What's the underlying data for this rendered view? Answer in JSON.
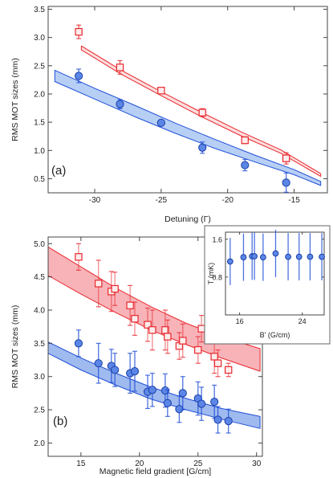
{
  "chart_data": [
    {
      "panel_label": "(a)",
      "type": "scatter",
      "xlabel": "Detuning (Γ)",
      "ylabel": "RMS MOT sizes (mm)",
      "xlim": [
        -33.5,
        -12.5
      ],
      "ylim": [
        0.25,
        3.55
      ],
      "xticks": [
        -30,
        -25,
        -20,
        -15
      ],
      "yticks": [
        0.5,
        1.0,
        1.5,
        2.0,
        2.5,
        3.0,
        3.5
      ],
      "grid": false,
      "series": [
        {
          "color": "#e8282e",
          "fill": "#fbd2d2",
          "marker": "square",
          "points": [
            {
              "x": -31.2,
              "y": 3.1,
              "err": 0.12
            },
            {
              "x": -28.1,
              "y": 2.47,
              "err": 0.12
            },
            {
              "x": -25.0,
              "y": 2.06,
              "err": 0.0
            },
            {
              "x": -21.9,
              "y": 1.67,
              "err": 0.07
            },
            {
              "x": -18.7,
              "y": 1.18,
              "err": 0.06
            },
            {
              "x": -15.6,
              "y": 0.86,
              "err": 0.1
            }
          ],
          "band": {
            "x": [
              -31,
              -28,
              -25,
              -22,
              -19,
              -16,
              -13
            ],
            "lower": [
              2.78,
              2.35,
              1.97,
              1.6,
              1.26,
              0.95,
              0.54
            ],
            "upper": [
              2.85,
              2.42,
              2.04,
              1.68,
              1.33,
              1.01,
              0.59
            ]
          }
        },
        {
          "color": "#1f4fd8",
          "fill": "#9fbff2",
          "marker": "circle",
          "points": [
            {
              "x": -31.2,
              "y": 2.32,
              "err": 0.12
            },
            {
              "x": -28.1,
              "y": 1.82,
              "err": 0.08
            },
            {
              "x": -25.0,
              "y": 1.49,
              "err": 0.0
            },
            {
              "x": -21.9,
              "y": 1.05,
              "err": 0.1
            },
            {
              "x": -18.7,
              "y": 0.74,
              "err": 0.1
            },
            {
              "x": -15.6,
              "y": 0.43,
              "err": 0.17
            }
          ],
          "band": {
            "x": [
              -33,
              -30,
              -27,
              -24,
              -21,
              -18,
              -15,
              -13
            ],
            "lower": [
              2.22,
              1.91,
              1.6,
              1.31,
              1.04,
              0.8,
              0.57,
              0.38
            ],
            "upper": [
              2.42,
              2.1,
              1.8,
              1.49,
              1.2,
              0.92,
              0.66,
              0.45
            ]
          }
        }
      ]
    },
    {
      "panel_label": "(b)",
      "type": "scatter",
      "xlabel": "Magnetic field gradient [G/cm]",
      "ylabel": "RMS MOT sizes (mm)",
      "xlim": [
        12.2,
        30.5
      ],
      "ylim": [
        1.8,
        5.1
      ],
      "xticks": [
        15,
        20,
        25,
        30
      ],
      "yticks": [
        2.0,
        2.5,
        3.0,
        3.5,
        4.0,
        4.5,
        5.0
      ],
      "grid": false,
      "series": [
        {
          "color": "#e8282e",
          "fill": "#f49aa0",
          "marker": "square",
          "points": [
            {
              "x": 14.8,
              "y": 4.8,
              "err": 0.2
            },
            {
              "x": 16.5,
              "y": 4.4,
              "err": 0.35
            },
            {
              "x": 17.6,
              "y": 4.28,
              "err": 0.3
            },
            {
              "x": 17.9,
              "y": 4.32,
              "err": 0.25
            },
            {
              "x": 19.2,
              "y": 4.07,
              "err": 0.3
            },
            {
              "x": 19.6,
              "y": 3.87,
              "err": 0.25
            },
            {
              "x": 20.7,
              "y": 3.78,
              "err": 0.25
            },
            {
              "x": 21.1,
              "y": 3.7,
              "err": 0.3
            },
            {
              "x": 22.2,
              "y": 3.7,
              "err": 0.3
            },
            {
              "x": 22.4,
              "y": 3.6,
              "err": 0.25
            },
            {
              "x": 23.4,
              "y": 3.46,
              "err": 0.2
            },
            {
              "x": 23.7,
              "y": 3.54,
              "err": 0.25
            },
            {
              "x": 25.0,
              "y": 3.4,
              "err": 0.2
            },
            {
              "x": 25.3,
              "y": 3.72,
              "err": 0.2
            },
            {
              "x": 26.4,
              "y": 3.3,
              "err": 0.25
            },
            {
              "x": 26.7,
              "y": 3.2,
              "err": 0.2
            },
            {
              "x": 27.6,
              "y": 3.1,
              "err": 0.1
            }
          ],
          "band": {
            "x": [
              12.2,
              15,
              18,
              21,
              24,
              27,
              30.3
            ],
            "lower": [
              4.52,
              4.24,
              3.96,
              3.7,
              3.48,
              3.28,
              3.08
            ],
            "upper": [
              4.95,
              4.65,
              4.33,
              4.05,
              3.8,
              3.6,
              3.42
            ]
          }
        },
        {
          "color": "#1f4fd8",
          "fill": "#7fa3ea",
          "marker": "circle",
          "points": [
            {
              "x": 14.8,
              "y": 3.5,
              "err": 0.2
            },
            {
              "x": 16.5,
              "y": 3.2,
              "err": 0.3
            },
            {
              "x": 17.6,
              "y": 3.16,
              "err": 0.25
            },
            {
              "x": 17.9,
              "y": 3.1,
              "err": 0.25
            },
            {
              "x": 19.2,
              "y": 3.05,
              "err": 0.3
            },
            {
              "x": 19.6,
              "y": 3.08,
              "err": 0.3
            },
            {
              "x": 20.7,
              "y": 2.77,
              "err": 0.25
            },
            {
              "x": 21.1,
              "y": 2.8,
              "err": 0.25
            },
            {
              "x": 22.2,
              "y": 2.79,
              "err": 0.25
            },
            {
              "x": 22.4,
              "y": 2.6,
              "err": 0.2
            },
            {
              "x": 23.4,
              "y": 2.51,
              "err": 0.2
            },
            {
              "x": 23.7,
              "y": 2.75,
              "err": 0.25
            },
            {
              "x": 25.0,
              "y": 2.67,
              "err": 0.25
            },
            {
              "x": 25.3,
              "y": 2.59,
              "err": 0.25
            },
            {
              "x": 26.4,
              "y": 2.62,
              "err": 0.25
            },
            {
              "x": 26.7,
              "y": 2.35,
              "err": 0.2
            },
            {
              "x": 27.6,
              "y": 2.33,
              "err": 0.18
            }
          ],
          "band": {
            "x": [
              12.2,
              15,
              18,
              21,
              24,
              27,
              30.3
            ],
            "lower": [
              3.35,
              3.1,
              2.87,
              2.66,
              2.5,
              2.36,
              2.22
            ],
            "upper": [
              3.52,
              3.28,
              3.05,
              2.84,
              2.67,
              2.52,
              2.4
            ]
          }
        }
      ]
    },
    {
      "panel_label": "",
      "type": "scatter",
      "xlabel": "B' (G/cm)",
      "ylabel": "T (mK)",
      "xlim": [
        14.2,
        26.8
      ],
      "ylim": [
        0.0,
        1.75
      ],
      "xticks": [
        16,
        24
      ],
      "yticks": [
        0.8,
        1.6
      ],
      "grid": false,
      "series": [
        {
          "color": "#1f4fd8",
          "fill": "#6d95ea",
          "marker": "circle",
          "points": [
            {
              "x": 14.8,
              "y": 1.13,
              "err": 0.5
            },
            {
              "x": 16.5,
              "y": 1.22,
              "err": 0.5
            },
            {
              "x": 17.6,
              "y": 1.24,
              "err": 0.5
            },
            {
              "x": 17.9,
              "y": 1.24,
              "err": 0.5
            },
            {
              "x": 19.0,
              "y": 1.22,
              "err": 0.5
            },
            {
              "x": 20.6,
              "y": 1.3,
              "err": 0.5
            },
            {
              "x": 22.2,
              "y": 1.23,
              "err": 0.5
            },
            {
              "x": 23.6,
              "y": 1.23,
              "err": 0.5
            },
            {
              "x": 25.0,
              "y": 1.23,
              "err": 0.5
            },
            {
              "x": 26.5,
              "y": 1.23,
              "err": 0.5
            }
          ]
        }
      ]
    }
  ]
}
